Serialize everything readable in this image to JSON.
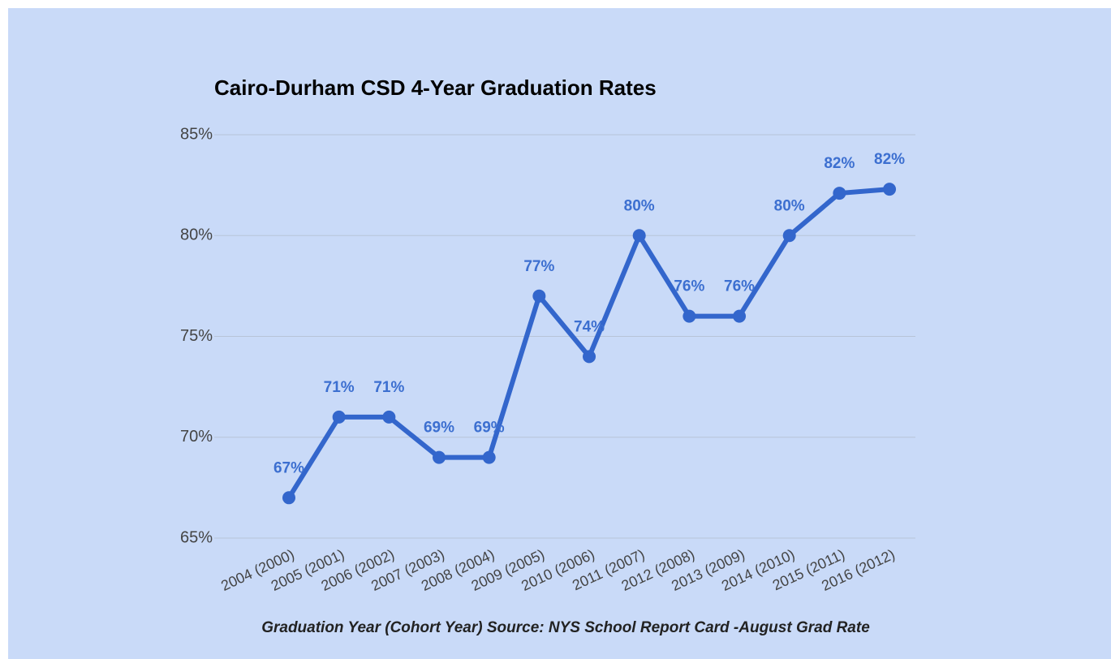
{
  "chart_data": {
    "type": "line",
    "title": "Cairo-Durham CSD 4-Year Graduation Rates",
    "x_label": "Graduation Year (Cohort Year) Source: NYS School Report Card -August Grad Rate",
    "categories": [
      "2004 (2000)",
      "2005 (2001)",
      "2006 (2002)",
      "2007 (2003)",
      "2008 (2004)",
      "2009 (2005)",
      "2010 (2006)",
      "2011 (2007)",
      "2012 (2008)",
      "2013 (2009)",
      "2014 (2010)",
      "2015 (2011)",
      "2016 (2012)"
    ],
    "values": [
      67,
      71,
      71,
      69,
      69,
      77,
      74,
      80,
      76,
      76,
      80,
      82.1,
      82.3
    ],
    "value_labels": [
      "67%",
      "71%",
      "71%",
      "69%",
      "69%",
      "77%",
      "74%",
      "80%",
      "76%",
      "76%",
      "80%",
      "82%",
      "82%"
    ],
    "color": "#3366cc",
    "ylim": [
      65,
      85
    ],
    "yticks": [
      {
        "value": 65,
        "label": "65%"
      },
      {
        "value": 70,
        "label": "70%"
      },
      {
        "value": 75,
        "label": "75%"
      },
      {
        "value": 80,
        "label": "80%"
      },
      {
        "value": 85,
        "label": "85%"
      }
    ],
    "grid": true
  }
}
